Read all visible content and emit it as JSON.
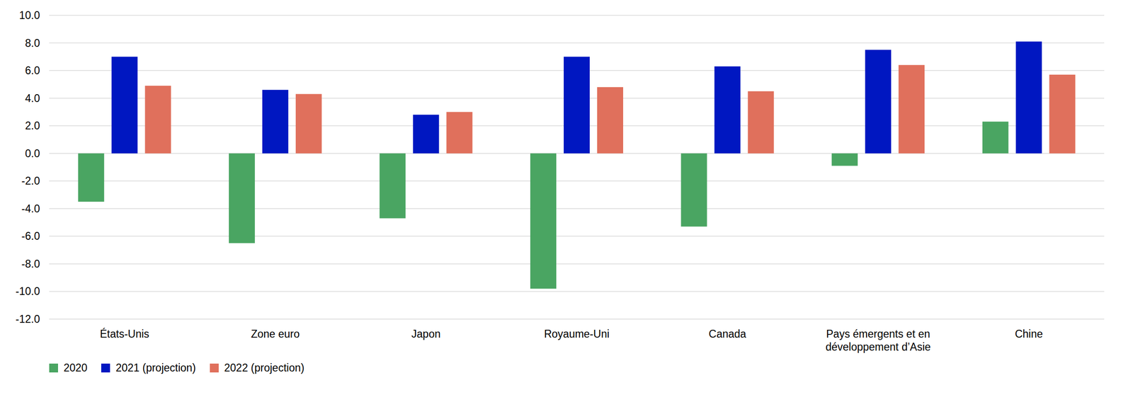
{
  "chart_data": {
    "type": "bar",
    "categories": [
      "États-Unis",
      "Zone euro",
      "Japon",
      "Royaume-Uni",
      "Canada",
      "Pays émergents et en développement d’Asie",
      "Chine"
    ],
    "series": [
      {
        "name": "2020",
        "color": "#4aa562",
        "values": [
          -3.5,
          -6.5,
          -4.7,
          -9.8,
          -5.3,
          -0.9,
          2.3
        ]
      },
      {
        "name": "2021 (projection)",
        "color": "#0017c1",
        "values": [
          7.0,
          4.6,
          2.8,
          7.0,
          6.3,
          7.5,
          8.1
        ]
      },
      {
        "name": "2022 (projection)",
        "color": "#e0705c",
        "values": [
          4.9,
          4.3,
          3.0,
          4.8,
          4.5,
          6.4,
          5.7
        ]
      }
    ],
    "ylim": [
      -12,
      10
    ],
    "yticks": [
      {
        "value": -12,
        "label": "-12.0"
      },
      {
        "value": -10,
        "label": "-10.0"
      },
      {
        "value": -8,
        "label": "-8.0"
      },
      {
        "value": -6,
        "label": "-6.0"
      },
      {
        "value": -4,
        "label": "-4.0"
      },
      {
        "value": -2,
        "label": "-2.0"
      },
      {
        "value": 0,
        "label": "0.0"
      },
      {
        "value": 2,
        "label": "2.0"
      },
      {
        "value": 4,
        "label": "4.0"
      },
      {
        "value": 6,
        "label": "6.0"
      },
      {
        "value": 8,
        "label": "8.0"
      },
      {
        "value": 10,
        "label": "10.0"
      }
    ],
    "grid": true,
    "legend": "bottom-left"
  }
}
